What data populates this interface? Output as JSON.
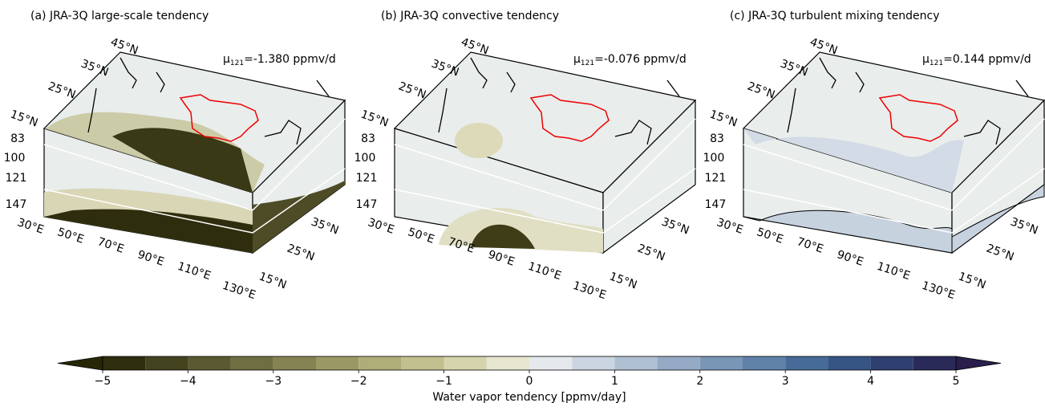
{
  "panels": [
    {
      "title": "(a) JRA-3Q large-scale tendency",
      "mu_label": {
        "symbol": "μ",
        "subscript": "121",
        "text": "=-1.380 ppmv/d"
      }
    },
    {
      "title": "(b) JRA-3Q convective tendency",
      "mu_label": {
        "symbol": "μ",
        "subscript": "121",
        "text": "=-0.076 ppmv/d"
      }
    },
    {
      "title": "(c) JRA-3Q turbulent mixing tendency",
      "mu_label": {
        "symbol": "μ",
        "subscript": "121",
        "text": "=0.144 ppmv/d"
      }
    }
  ],
  "axes": {
    "lat_top": [
      "45°N",
      "35°N",
      "25°N",
      "15°N"
    ],
    "levels": [
      83,
      100,
      121,
      147
    ],
    "lon": [
      "30°E",
      "50°E",
      "70°E",
      "90°E",
      "110°E",
      "130°E"
    ],
    "lat_side": [
      "35°N",
      "25°N",
      "15°N"
    ]
  },
  "chart_data": {
    "type": "colorbar",
    "label": "Water vapor tendency [ppmv/day]",
    "bounds": [
      -5,
      -4.5,
      -4,
      -3.5,
      -3,
      -2.5,
      -2,
      -1.5,
      -1,
      -0.5,
      0,
      0.5,
      1,
      1.5,
      2,
      2.5,
      3,
      3.5,
      4,
      4.5,
      5
    ],
    "colors": [
      "#2e2d0d",
      "#444320",
      "#5a5932",
      "#6f6e43",
      "#858354",
      "#9a9966",
      "#afad78",
      "#c2c08f",
      "#d6d4ad",
      "#e7e6d0",
      "#e5e9ee",
      "#cbd5e1",
      "#b0c0d3",
      "#95abc5",
      "#7a96b6",
      "#5f81a8",
      "#466b98",
      "#365585",
      "#2f3f70",
      "#2a2a59"
    ],
    "under_color": "#272708",
    "over_color": "#2a1e4c",
    "xlim": [
      -5,
      5
    ],
    "xticks": [
      {
        "value": -5,
        "label": "−5"
      },
      {
        "value": -4,
        "label": "−4"
      },
      {
        "value": -3,
        "label": "−3"
      },
      {
        "value": -2,
        "label": "−2"
      },
      {
        "value": -1,
        "label": "−1"
      },
      0,
      1,
      2,
      3,
      4,
      5
    ]
  }
}
